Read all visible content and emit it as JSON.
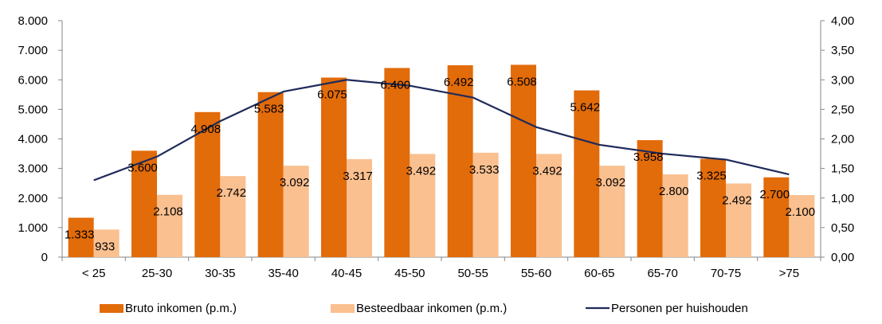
{
  "chart_data": {
    "type": "bar",
    "categories": [
      "< 25",
      "25-30",
      "30-35",
      "35-40",
      "40-45",
      "45-50",
      "50-55",
      "55-60",
      "60-65",
      "65-70",
      "70-75",
      ">75"
    ],
    "series": [
      {
        "name": "Bruto inkomen (p.m.)",
        "type": "bar",
        "axis": "left",
        "color": "#E26B0A",
        "values": [
          1333,
          3600,
          4908,
          5583,
          6075,
          6400,
          6492,
          6508,
          5642,
          3958,
          3325,
          2700
        ],
        "labels": [
          "1.333",
          "3.600",
          "4.908",
          "5.583",
          "6.075",
          "6.400",
          "6.492",
          "6.508",
          "5.642",
          "3.958",
          "3.325",
          "2.700"
        ]
      },
      {
        "name": "Besteedbaar inkomen (p.m.)",
        "type": "bar",
        "axis": "left",
        "color": "#FAC090",
        "values": [
          933,
          2108,
          2742,
          3092,
          3317,
          3492,
          3533,
          3492,
          3092,
          2800,
          2492,
          2100
        ],
        "labels": [
          "933",
          "2.108",
          "2.742",
          "3.092",
          "3.317",
          "3.492",
          "3.533",
          "3.492",
          "3.092",
          "2.800",
          "2.492",
          "2.100"
        ]
      },
      {
        "name": "Personen per huishouden",
        "type": "line",
        "axis": "right",
        "color": "#1F2A5A",
        "values": [
          1.3,
          1.7,
          2.3,
          2.8,
          3.0,
          2.9,
          2.7,
          2.2,
          1.9,
          1.75,
          1.65,
          1.4
        ]
      }
    ],
    "y_left": {
      "range": [
        0,
        8000
      ],
      "ticks": [
        0,
        1000,
        2000,
        3000,
        4000,
        5000,
        6000,
        7000,
        8000
      ],
      "tick_labels": [
        "0",
        "1.000",
        "2.000",
        "3.000",
        "4.000",
        "5.000",
        "6.000",
        "7.000",
        "8.000"
      ]
    },
    "y_right": {
      "range": [
        0,
        4
      ],
      "ticks": [
        0,
        0.5,
        1,
        1.5,
        2,
        2.5,
        3,
        3.5,
        4
      ],
      "tick_labels": [
        "0,00",
        "0,50",
        "1,00",
        "1,50",
        "2,00",
        "2,50",
        "3,00",
        "3,50",
        "4,00"
      ]
    },
    "grid": false,
    "legend_position": "bottom"
  }
}
